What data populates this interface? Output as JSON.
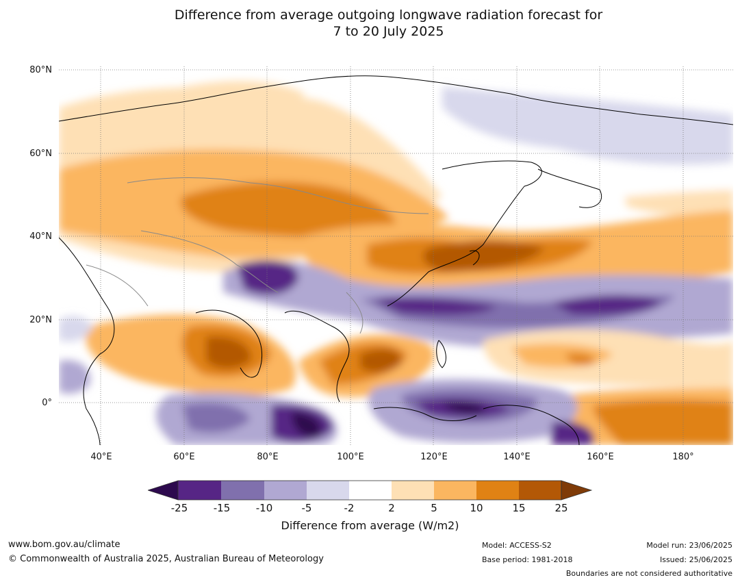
{
  "title_line1": "Difference from average outgoing longwave radiation forecast for",
  "title_line2": "7 to 20 July 2025",
  "axes": {
    "lat_labels": [
      "80°N",
      "60°N",
      "40°N",
      "20°N",
      "0°"
    ],
    "lon_labels": [
      "40°E",
      "60°E",
      "80°E",
      "100°E",
      "120°E",
      "140°E",
      "160°E",
      "180°"
    ]
  },
  "colorbar": {
    "ticks": [
      "-25",
      "-15",
      "-10",
      "-5",
      "-2",
      "2",
      "5",
      "10",
      "15",
      "25"
    ],
    "colors": [
      "#2d0a4e",
      "#562585",
      "#8070ad",
      "#b0a8d2",
      "#d8d8ec",
      "#ffffff",
      "#fee0b5",
      "#fbb660",
      "#e08214",
      "#b35806",
      "#7f3b08"
    ],
    "label": "Difference from average (W/m2)"
  },
  "footer": {
    "website": "www.bom.gov.au/climate",
    "copyright": "© Commonwealth of Australia 2025, Australian Bureau of Meteorology",
    "model": "Model: ACCESS-S2",
    "base_period": "Base period: 1981-2018",
    "model_run": "Model run: 23/06/2025",
    "issued": "Issued: 25/06/2025",
    "disclaimer": "Boundaries are not considered authoritative"
  }
}
